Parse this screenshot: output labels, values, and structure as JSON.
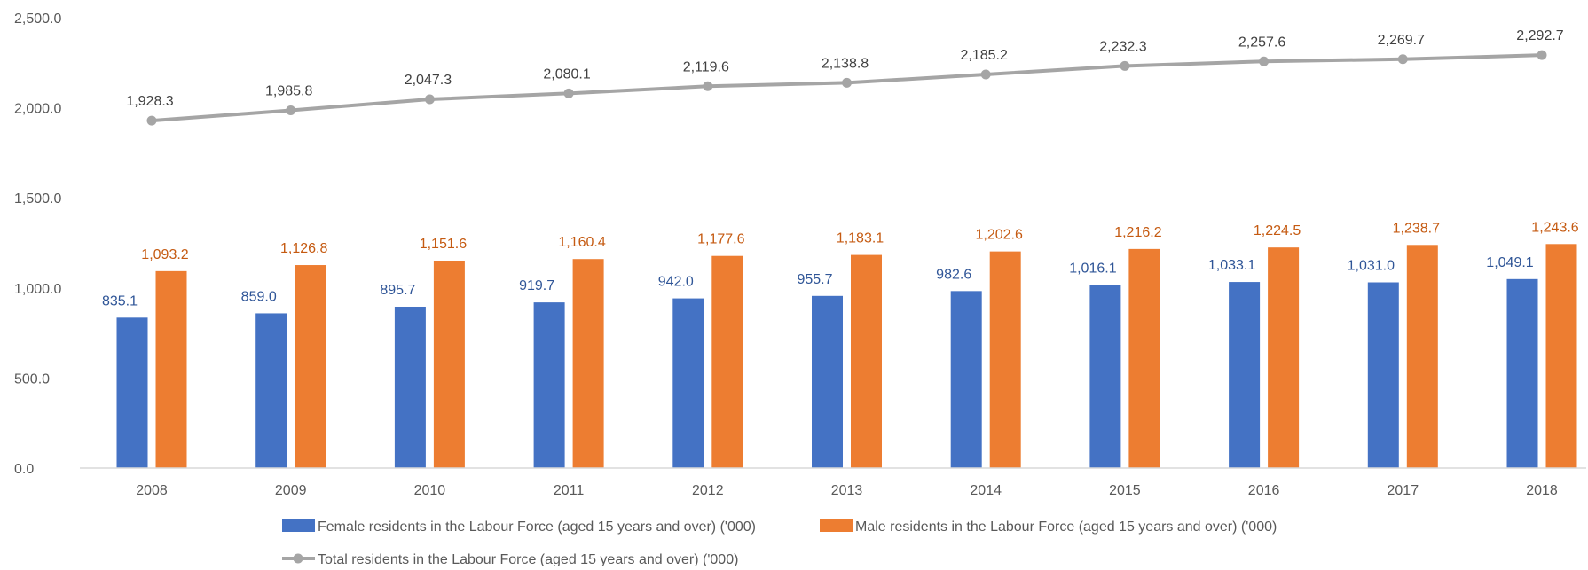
{
  "chart_data": {
    "type": "bar",
    "categories": [
      "2008",
      "2009",
      "2010",
      "2011",
      "2012",
      "2013",
      "2014",
      "2015",
      "2016",
      "2017",
      "2018"
    ],
    "ylim": [
      0,
      2500
    ],
    "yticks": [
      0,
      500,
      1000,
      1500,
      2000,
      2500
    ],
    "ytick_labels": [
      "0.0",
      "500.0",
      "1,000.0",
      "1,500.0",
      "2,000.0",
      "2,500.0"
    ],
    "grid": false,
    "legend_position": "bottom",
    "series": [
      {
        "name": "Female residents in the Labour Force (aged 15 years and over) ('000)",
        "kind": "bar",
        "color": "#4472C4",
        "label_color": "#2F5597",
        "values": [
          835.1,
          859.0,
          895.7,
          919.7,
          942.0,
          955.7,
          982.6,
          1016.1,
          1033.1,
          1031.0,
          1049.1
        ],
        "labels": [
          "835.1",
          "859.0",
          "895.7",
          "919.7",
          "942.0",
          "955.7",
          "982.6",
          "1,016.1",
          "1,033.1",
          "1,031.0",
          "1,049.1"
        ]
      },
      {
        "name": "Male residents in the Labour Force (aged 15 years and over) ('000)",
        "kind": "bar",
        "color": "#ED7D31",
        "label_color": "#C55A11",
        "values": [
          1093.2,
          1126.8,
          1151.6,
          1160.4,
          1177.6,
          1183.1,
          1202.6,
          1216.2,
          1224.5,
          1238.7,
          1243.6
        ],
        "labels": [
          "1,093.2",
          "1,126.8",
          "1,151.6",
          "1,160.4",
          "1,177.6",
          "1,183.1",
          "1,202.6",
          "1,216.2",
          "1,224.5",
          "1,238.7",
          "1,243.6"
        ]
      },
      {
        "name": "Total residents in the Labour Force (aged 15 years and over) ('000)",
        "kind": "line",
        "color": "#A5A5A5",
        "label_color": "#404040",
        "values": [
          1928.3,
          1985.8,
          2047.3,
          2080.1,
          2119.6,
          2138.8,
          2185.2,
          2232.3,
          2257.6,
          2269.7,
          2292.7
        ],
        "labels": [
          "1,928.3",
          "1,985.8",
          "2,047.3",
          "2,080.1",
          "2,119.6",
          "2,138.8",
          "2,185.2",
          "2,232.3",
          "2,257.6",
          "2,269.7",
          "2,292.7"
        ]
      }
    ]
  }
}
